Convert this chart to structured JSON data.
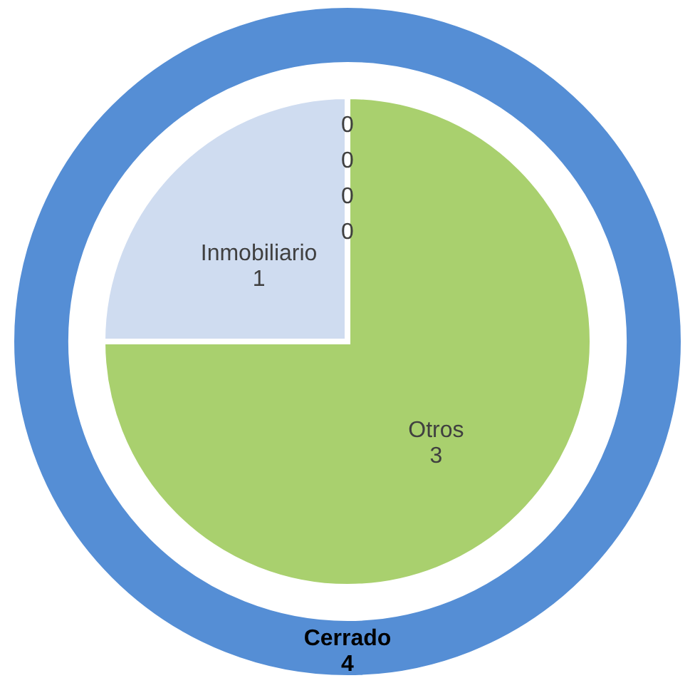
{
  "chart_data": {
    "type": "donut",
    "categories": [
      "Otros",
      "Inmobiliario",
      null,
      null,
      null,
      null,
      null
    ],
    "series": [
      {
        "type": "pie",
        "values": [
          3,
          1,
          0,
          0,
          0,
          0,
          null
        ],
        "value_labels": [
          "3",
          "1",
          "0",
          "0",
          "0",
          "0",
          null
        ],
        "colors": [
          "#a9d06e",
          "#cfdcf0",
          "#cfdcf0",
          "#cfdcf0",
          "#cfdcf0",
          "#cfdcf0",
          null
        ]
      },
      {
        "name": "Cerrado",
        "values": [
          null,
          null,
          null,
          null,
          null,
          null,
          4
        ],
        "value_labels": [
          null,
          null,
          null,
          null,
          null,
          null,
          "4"
        ],
        "colors": [
          null,
          null,
          null,
          null,
          null,
          null,
          "#558ed5"
        ]
      }
    ]
  }
}
